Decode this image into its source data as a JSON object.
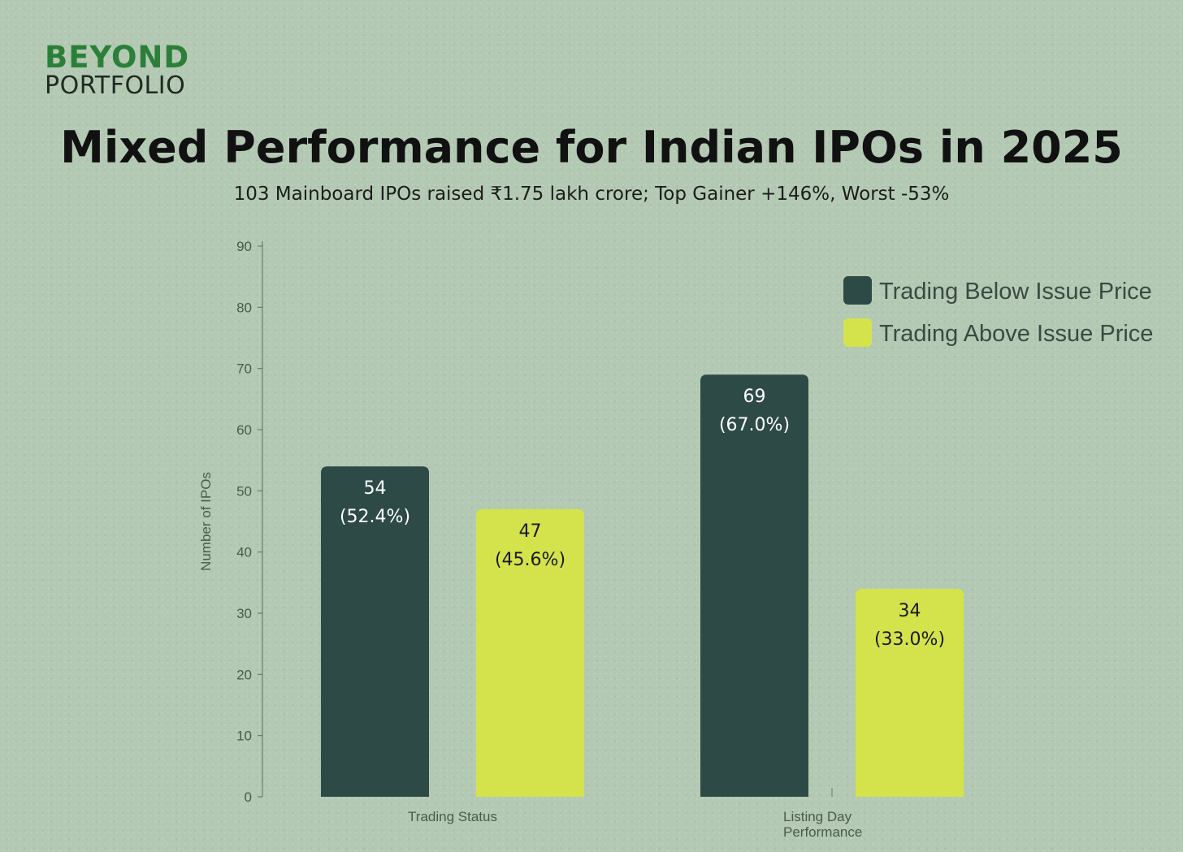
{
  "logo": {
    "line1": "BEYOND",
    "line2": "PORTFOLIO"
  },
  "title": "Mixed Performance for Indian IPOs in 2025",
  "subtitle": "103 Mainboard IPOs raised ₹1.75 lakh crore; Top Gainer +146%, Worst -53%",
  "colors": {
    "below": "#2d4a47",
    "above": "#d4e34b",
    "axis": "#6b7a6b"
  },
  "chart_data": {
    "type": "bar",
    "title": "Mixed Performance for Indian IPOs in 2025",
    "xlabel": "",
    "ylabel": "Number of IPOs",
    "ylim": [
      0,
      90
    ],
    "yticks": [
      0,
      10,
      20,
      30,
      40,
      50,
      60,
      70,
      80,
      90
    ],
    "categories": [
      "Trading Status",
      "Listing Day Performance"
    ],
    "category_label_lines": [
      [
        "Trading Status"
      ],
      [
        "Listing Day",
        "Performance"
      ]
    ],
    "legend_position": "top-right",
    "series": [
      {
        "name": "Trading Below Issue Price",
        "values": [
          54,
          69
        ],
        "labels": [
          "(52.4%)",
          "(67.0%)"
        ]
      },
      {
        "name": "Trading Above Issue Price",
        "values": [
          47,
          34
        ],
        "labels": [
          "(45.6%)",
          "(33.0%)"
        ]
      }
    ]
  }
}
